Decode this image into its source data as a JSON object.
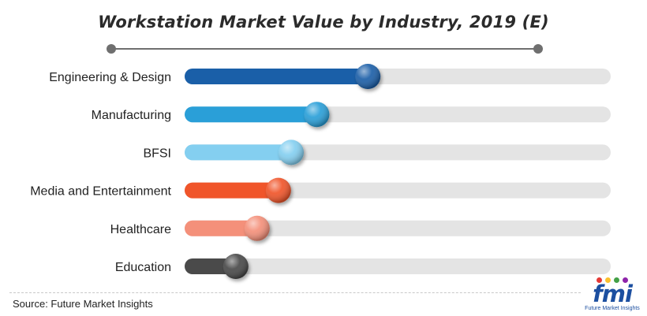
{
  "title": "Workstation Market Value by Industry, 2019 (E)",
  "source": "Source: Future Market Insights",
  "logo": {
    "text": "fmi",
    "subtitle": "Future Market Insights"
  },
  "chart_data": {
    "type": "bar",
    "orientation": "horizontal",
    "title": "Workstation Market Value by Industry, 2019 (E)",
    "xlabel": "",
    "ylabel": "",
    "value_unit": "fraction of full track",
    "xlim": [
      0,
      1
    ],
    "grid": false,
    "legend": "none",
    "categories": [
      "Engineering & Design",
      "Manufacturing",
      "BFSI",
      "Media and Entertainment",
      "Healthcare",
      "Education"
    ],
    "values": [
      0.43,
      0.31,
      0.25,
      0.22,
      0.17,
      0.12
    ],
    "colors": [
      "#1a5fa8",
      "#2a9fd8",
      "#84cff0",
      "#f0552a",
      "#f4907a",
      "#4a4a4a"
    ],
    "track_color": "#e4e4e4"
  }
}
